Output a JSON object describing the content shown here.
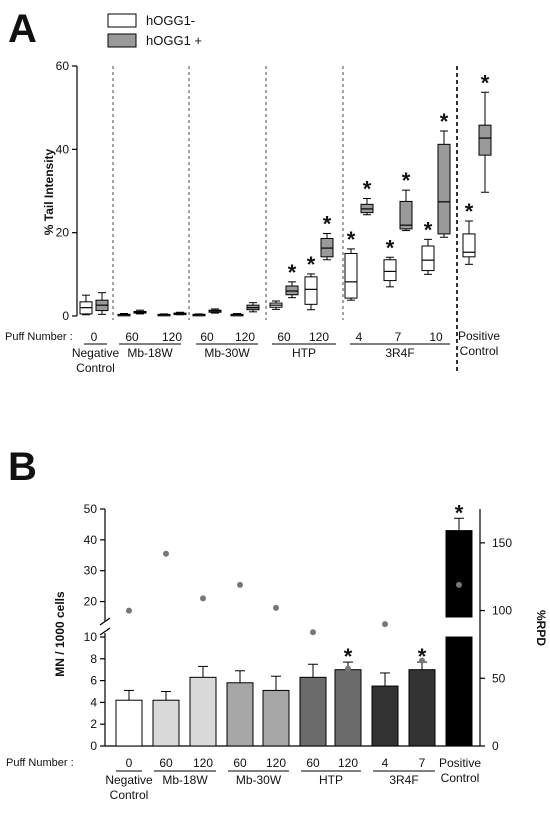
{
  "panel_a": {
    "letter": "A",
    "ylabel": "% Tail Intensity",
    "legend": [
      {
        "label": "hOGG1-",
        "color": "#ffffff"
      },
      {
        "label": "hOGG1 +",
        "color": "#9a9a9a"
      }
    ],
    "puff_label": "Puff Number :",
    "groups": [
      {
        "name": "Negative Control",
        "lines": [
          "Negative",
          "Control"
        ],
        "puffs": [
          "0"
        ]
      },
      {
        "name": "Mb-18W",
        "lines": [
          "Mb-18W"
        ],
        "puffs": [
          "60",
          "120"
        ]
      },
      {
        "name": "Mb-30W",
        "lines": [
          "Mb-30W"
        ],
        "puffs": [
          "60",
          "120"
        ]
      },
      {
        "name": "HTP",
        "lines": [
          "HTP"
        ],
        "puffs": [
          "60",
          "120"
        ]
      },
      {
        "name": "3R4F",
        "lines": [
          "3R4F"
        ],
        "puffs": [
          "4",
          "7",
          "10"
        ]
      },
      {
        "name": "Positive Control",
        "lines": [
          "Positive",
          "Control"
        ],
        "puffs": []
      }
    ]
  },
  "panel_b": {
    "letter": "B",
    "ylabel_left": "MN / 1000 cells",
    "ylabel_right": "%RPD",
    "puff_label": "Puff Number :",
    "groups": [
      {
        "name": "Negative Control",
        "lines": [
          "Negative",
          "Control"
        ],
        "puffs": [
          "0"
        ]
      },
      {
        "name": "Mb-18W",
        "lines": [
          "Mb-18W"
        ],
        "puffs": [
          "60",
          "120"
        ]
      },
      {
        "name": "Mb-30W",
        "lines": [
          "Mb-30W"
        ],
        "puffs": [
          "60",
          "120"
        ]
      },
      {
        "name": "HTP",
        "lines": [
          "HTP"
        ],
        "puffs": [
          "60",
          "120"
        ]
      },
      {
        "name": "3R4F",
        "lines": [
          "3R4F"
        ],
        "puffs": [
          "4",
          "7"
        ]
      },
      {
        "name": "Positive Control",
        "lines": [
          "Positive",
          "Control"
        ],
        "puffs": []
      }
    ]
  },
  "chart_data": [
    {
      "type": "box",
      "title": "A",
      "ylabel": "% Tail Intensity",
      "ylim": [
        0,
        60
      ],
      "yticks": [
        0,
        20,
        40,
        60
      ],
      "legend_position": "top",
      "series": [
        {
          "name": "hOGG1-",
          "color": "#ffffff"
        },
        {
          "name": "hOGG1 +",
          "color": "#9a9a9a"
        }
      ],
      "boxes": [
        {
          "group": "Negative Control",
          "puff": "0",
          "series": "hOGG1-",
          "min": 0.3,
          "q1": 0.5,
          "median": 2.0,
          "q3": 3.4,
          "max": 5.0,
          "sig": false
        },
        {
          "group": "Negative Control",
          "puff": "0",
          "series": "hOGG1 +",
          "min": 0.4,
          "q1": 1.3,
          "median": 2.6,
          "q3": 3.8,
          "max": 5.6,
          "sig": false
        },
        {
          "group": "Mb-18W",
          "puff": "60",
          "series": "hOGG1-",
          "min": 0.1,
          "q1": 0.2,
          "median": 0.3,
          "q3": 0.4,
          "max": 0.6,
          "sig": false
        },
        {
          "group": "Mb-18W",
          "puff": "60",
          "series": "hOGG1 +",
          "min": 0.5,
          "q1": 0.7,
          "median": 0.9,
          "q3": 1.1,
          "max": 1.4,
          "sig": false
        },
        {
          "group": "Mb-18W",
          "puff": "120",
          "series": "hOGG1-",
          "min": 0.1,
          "q1": 0.2,
          "median": 0.3,
          "q3": 0.4,
          "max": 0.5,
          "sig": false
        },
        {
          "group": "Mb-18W",
          "puff": "120",
          "series": "hOGG1 +",
          "min": 0.3,
          "q1": 0.4,
          "median": 0.6,
          "q3": 0.7,
          "max": 0.9,
          "sig": false
        },
        {
          "group": "Mb-30W",
          "puff": "60",
          "series": "hOGG1-",
          "min": 0.1,
          "q1": 0.2,
          "median": 0.3,
          "q3": 0.4,
          "max": 0.5,
          "sig": false
        },
        {
          "group": "Mb-30W",
          "puff": "60",
          "series": "hOGG1 +",
          "min": 0.7,
          "q1": 0.9,
          "median": 1.2,
          "q3": 1.4,
          "max": 1.7,
          "sig": false
        },
        {
          "group": "Mb-30W",
          "puff": "120",
          "series": "hOGG1-",
          "min": 0.1,
          "q1": 0.2,
          "median": 0.3,
          "q3": 0.4,
          "max": 0.6,
          "sig": false
        },
        {
          "group": "Mb-30W",
          "puff": "120",
          "series": "hOGG1 +",
          "min": 1.0,
          "q1": 1.5,
          "median": 2.0,
          "q3": 2.6,
          "max": 3.2,
          "sig": false
        },
        {
          "group": "HTP",
          "puff": "60",
          "series": "hOGG1-",
          "min": 1.6,
          "q1": 2.1,
          "median": 2.6,
          "q3": 3.1,
          "max": 3.6,
          "sig": false
        },
        {
          "group": "HTP",
          "puff": "60",
          "series": "hOGG1 +",
          "min": 4.4,
          "q1": 5.1,
          "median": 6.0,
          "q3": 7.2,
          "max": 8.2,
          "sig": true
        },
        {
          "group": "HTP",
          "puff": "120",
          "series": "hOGG1-",
          "min": 1.5,
          "q1": 2.8,
          "median": 6.4,
          "q3": 9.4,
          "max": 10.1,
          "sig": true
        },
        {
          "group": "HTP",
          "puff": "120",
          "series": "hOGG1 +",
          "min": 13.5,
          "q1": 14.2,
          "median": 16.3,
          "q3": 18.6,
          "max": 19.8,
          "sig": true
        },
        {
          "group": "3R4F",
          "puff": "4",
          "series": "hOGG1-",
          "min": 3.8,
          "q1": 4.3,
          "median": 8.2,
          "q3": 15.0,
          "max": 16.1,
          "sig": true
        },
        {
          "group": "3R4F",
          "puff": "4",
          "series": "hOGG1 +",
          "min": 24.3,
          "q1": 24.8,
          "median": 25.7,
          "q3": 26.8,
          "max": 28.2,
          "sig": true
        },
        {
          "group": "3R4F",
          "puff": "7",
          "series": "hOGG1-",
          "min": 7.0,
          "q1": 8.5,
          "median": 10.7,
          "q3": 13.5,
          "max": 14.1,
          "sig": true
        },
        {
          "group": "3R4F",
          "puff": "7",
          "series": "hOGG1 +",
          "min": 20.5,
          "q1": 20.9,
          "median": 21.8,
          "q3": 27.5,
          "max": 30.2,
          "sig": true
        },
        {
          "group": "3R4F",
          "puff": "10",
          "series": "hOGG1-",
          "min": 10.0,
          "q1": 10.9,
          "median": 13.4,
          "q3": 16.8,
          "max": 18.4,
          "sig": true
        },
        {
          "group": "3R4F",
          "puff": "10",
          "series": "hOGG1 +",
          "min": 18.9,
          "q1": 19.7,
          "median": 27.4,
          "q3": 41.2,
          "max": 44.4,
          "sig": true
        },
        {
          "group": "Positive Control",
          "puff": "",
          "series": "hOGG1-",
          "min": 12.4,
          "q1": 14.2,
          "median": 15.3,
          "q3": 19.7,
          "max": 22.8,
          "sig": true
        },
        {
          "group": "Positive Control",
          "puff": "",
          "series": "hOGG1 +",
          "min": 29.7,
          "q1": 38.6,
          "median": 42.7,
          "q3": 45.8,
          "max": 53.7,
          "sig": true
        }
      ]
    },
    {
      "type": "bar",
      "title": "B",
      "ylabel": "MN / 1000 cells",
      "y2label": "%RPD",
      "ylim": [
        0,
        50
      ],
      "y_axis_break": [
        10,
        15
      ],
      "yticks": [
        0,
        2,
        4,
        6,
        8,
        10,
        20,
        30,
        40,
        50
      ],
      "y2lim": [
        0,
        175
      ],
      "y2ticks": [
        0,
        50,
        100,
        150
      ],
      "categories": [
        "0",
        "60",
        "120",
        "60",
        "120",
        "60",
        "120",
        "4",
        "7",
        ""
      ],
      "groups": [
        "Negative Control",
        "Mb-18W",
        "Mb-18W",
        "Mb-30W",
        "Mb-30W",
        "HTP",
        "HTP",
        "3R4F",
        "3R4F",
        "Positive Control"
      ],
      "series": [
        {
          "name": "MN / 1000 cells",
          "values": [
            4.2,
            4.2,
            6.3,
            5.8,
            5.1,
            6.3,
            7.0,
            5.5,
            7.0,
            43.0
          ],
          "errors": [
            0.9,
            0.8,
            1.0,
            1.1,
            1.3,
            1.2,
            0.7,
            1.2,
            0.7,
            4.0
          ],
          "colors": [
            "#ffffff",
            "#d9d9d9",
            "#d9d9d9",
            "#a6a6a6",
            "#a6a6a6",
            "#6b6b6b",
            "#6b6b6b",
            "#333333",
            "#333333",
            "#000000"
          ],
          "sig": [
            false,
            false,
            false,
            false,
            false,
            false,
            true,
            false,
            true,
            true
          ]
        },
        {
          "name": "%RPD",
          "axis": "right",
          "values": [
            100,
            142,
            109,
            119,
            102,
            84,
            57,
            90,
            63,
            119
          ]
        }
      ]
    }
  ]
}
